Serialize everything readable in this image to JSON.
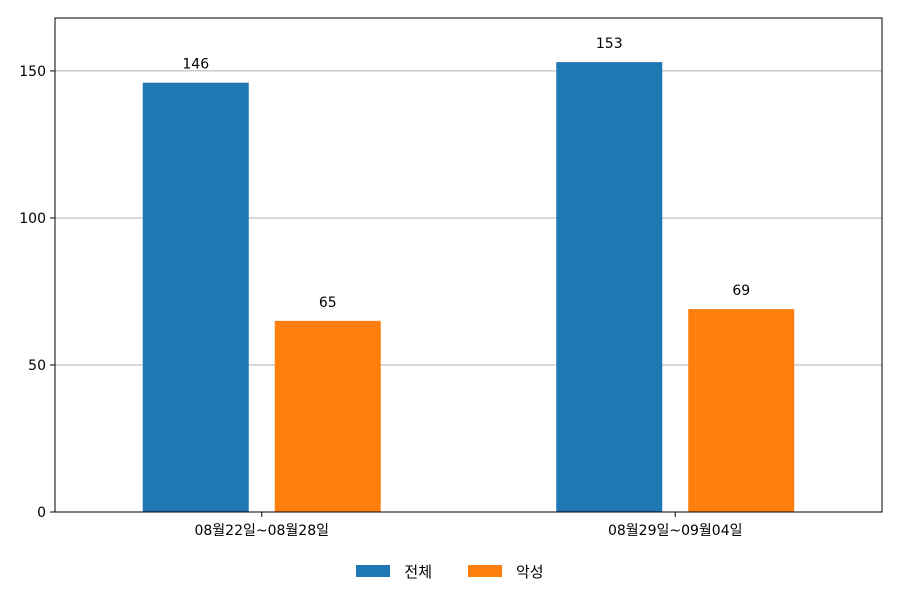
{
  "chart_data": {
    "type": "bar",
    "categories": [
      "08월22일~08월28일",
      "08월29일~09월04일"
    ],
    "series": [
      {
        "name": "전체",
        "values": [
          146,
          153
        ],
        "color": "#1f77b4"
      },
      {
        "name": "악성",
        "values": [
          65,
          69
        ],
        "color": "#ff7f0e"
      }
    ],
    "ylim": [
      0,
      168
    ],
    "yticks": [
      0,
      50,
      100,
      150
    ],
    "grid": "y",
    "legend_position": "bottom-center",
    "data_labels": true
  }
}
